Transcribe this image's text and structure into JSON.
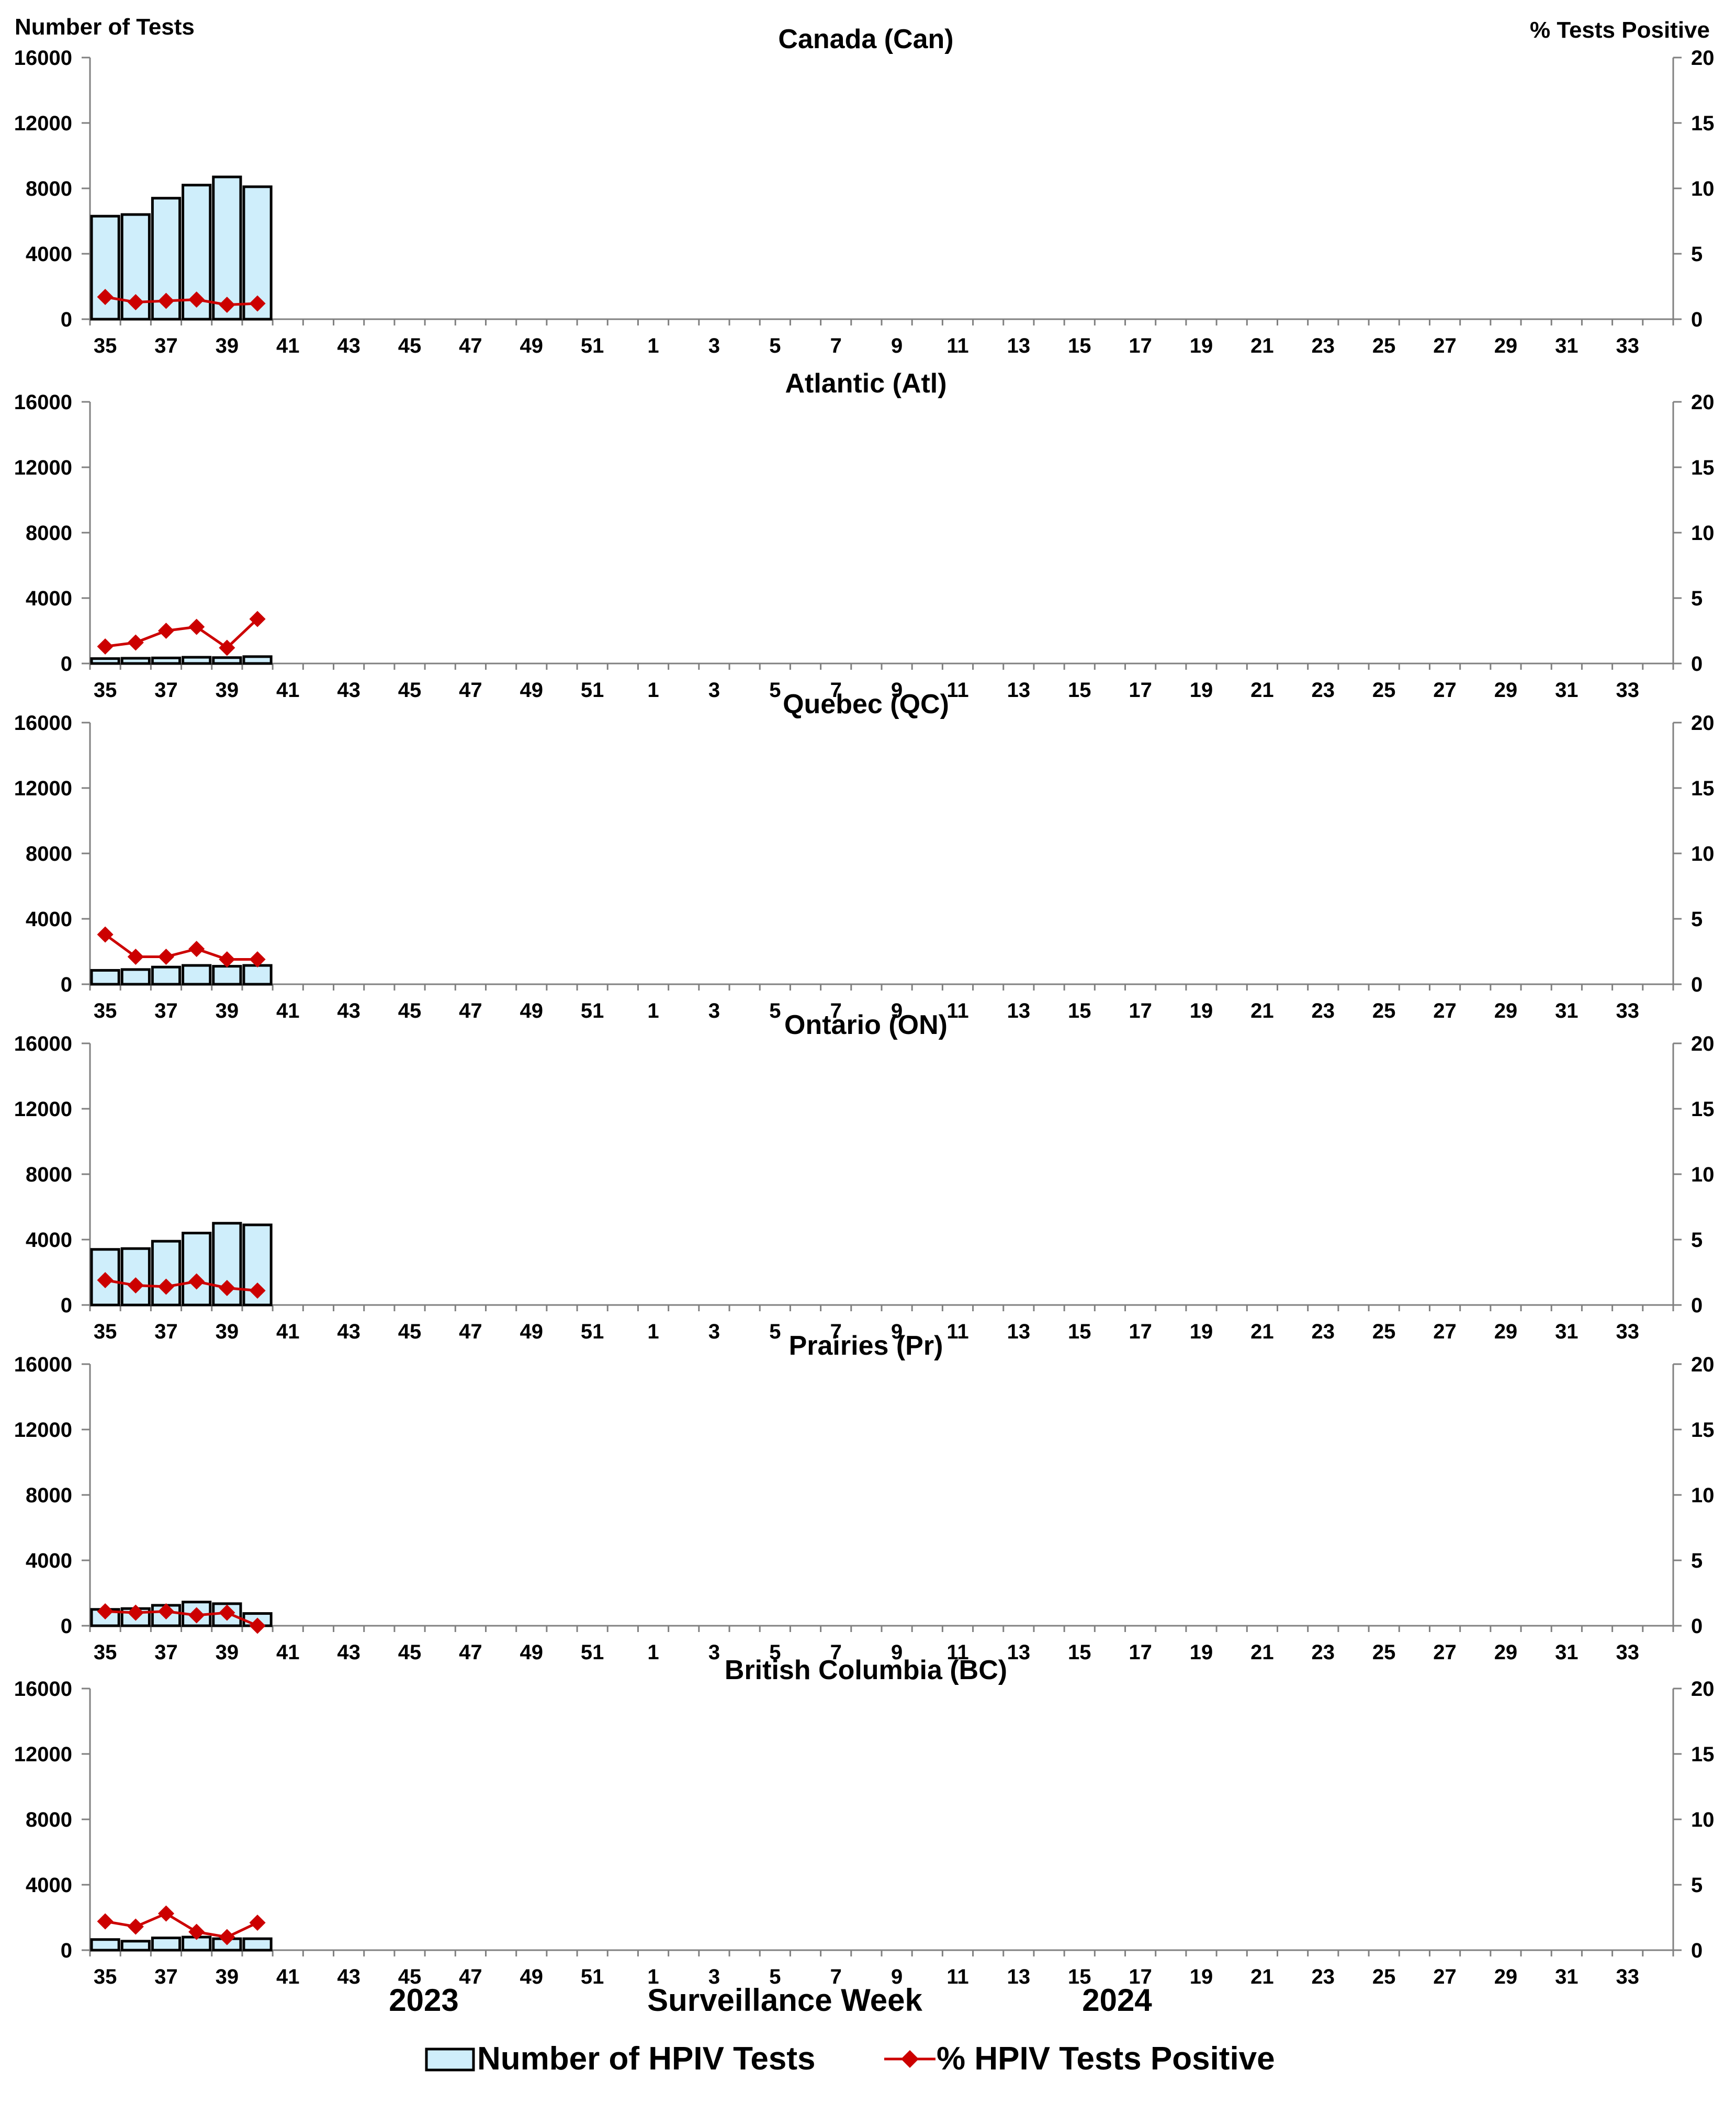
{
  "axes": {
    "left_title": "Number of Tests",
    "right_title": "% Tests Positive",
    "x_title": "Surveillance Week",
    "year_labels": [
      "2023",
      "2024"
    ]
  },
  "legend": {
    "bars_label": "Number of HPIV Tests",
    "line_label": "% HPIV Tests Positive"
  },
  "colors": {
    "bar_fill": "#cfeefb",
    "bar_stroke": "#000000",
    "line": "#cc0000",
    "axis": "#808080"
  },
  "chart_data": [
    {
      "type": "bar",
      "title": "Canada (Can)",
      "x_ticks": [
        "35",
        "37",
        "39",
        "41",
        "43",
        "45",
        "47",
        "49",
        "51",
        "1",
        "3",
        "5",
        "7",
        "9",
        "11",
        "13",
        "15",
        "17",
        "19",
        "21",
        "23",
        "25",
        "27",
        "29",
        "31",
        "33"
      ],
      "y_ticks_left": [
        "0",
        "4000",
        "8000",
        "12000",
        "16000"
      ],
      "y_ticks_right": [
        "0",
        "5",
        "10",
        "15",
        "20"
      ],
      "ylim_left": [
        0,
        16000
      ],
      "ylim_right": [
        0,
        20
      ],
      "weeks": [
        "35",
        "36",
        "37",
        "38",
        "39",
        "40"
      ],
      "series": [
        {
          "name": "Number of HPIV Tests",
          "axis": "left",
          "values": [
            6300,
            6400,
            7400,
            8200,
            8700,
            8100
          ]
        },
        {
          "name": "% HPIV Tests Positive",
          "axis": "right",
          "values": [
            1.7,
            1.3,
            1.4,
            1.5,
            1.1,
            1.2
          ]
        }
      ]
    },
    {
      "type": "bar",
      "title": "Atlantic (Atl)",
      "x_ticks": [
        "35",
        "37",
        "39",
        "41",
        "43",
        "45",
        "47",
        "49",
        "51",
        "1",
        "3",
        "5",
        "7",
        "9",
        "11",
        "13",
        "15",
        "17",
        "19",
        "21",
        "23",
        "25",
        "27",
        "29",
        "31",
        "33"
      ],
      "y_ticks_left": [
        "0",
        "4000",
        "8000",
        "12000",
        "16000"
      ],
      "y_ticks_right": [
        "0",
        "5",
        "10",
        "15",
        "20"
      ],
      "ylim_left": [
        0,
        16000
      ],
      "ylim_right": [
        0,
        20
      ],
      "weeks": [
        "35",
        "36",
        "37",
        "38",
        "39",
        "40"
      ],
      "series": [
        {
          "name": "Number of HPIV Tests",
          "axis": "left",
          "values": [
            300,
            320,
            340,
            380,
            360,
            420
          ]
        },
        {
          "name": "% HPIV Tests Positive",
          "axis": "right",
          "values": [
            1.3,
            1.6,
            2.5,
            2.8,
            1.2,
            3.4
          ]
        }
      ]
    },
    {
      "type": "bar",
      "title": "Quebec (QC)",
      "x_ticks": [
        "35",
        "37",
        "39",
        "41",
        "43",
        "45",
        "47",
        "49",
        "51",
        "1",
        "3",
        "5",
        "7",
        "9",
        "11",
        "13",
        "15",
        "17",
        "19",
        "21",
        "23",
        "25",
        "27",
        "29",
        "31",
        "33"
      ],
      "y_ticks_left": [
        "0",
        "4000",
        "8000",
        "12000",
        "16000"
      ],
      "y_ticks_right": [
        "0",
        "5",
        "10",
        "15",
        "20"
      ],
      "ylim_left": [
        0,
        16000
      ],
      "ylim_right": [
        0,
        20
      ],
      "weeks": [
        "35",
        "36",
        "37",
        "38",
        "39",
        "40"
      ],
      "series": [
        {
          "name": "Number of HPIV Tests",
          "axis": "left",
          "values": [
            850,
            900,
            1050,
            1150,
            1100,
            1150
          ]
        },
        {
          "name": "% HPIV Tests Positive",
          "axis": "right",
          "values": [
            3.8,
            2.1,
            2.1,
            2.7,
            1.9,
            1.9
          ]
        }
      ]
    },
    {
      "type": "bar",
      "title": "Ontario (ON)",
      "x_ticks": [
        "35",
        "37",
        "39",
        "41",
        "43",
        "45",
        "47",
        "49",
        "51",
        "1",
        "3",
        "5",
        "7",
        "9",
        "11",
        "13",
        "15",
        "17",
        "19",
        "21",
        "23",
        "25",
        "27",
        "29",
        "31",
        "33"
      ],
      "y_ticks_left": [
        "0",
        "4000",
        "8000",
        "12000",
        "16000"
      ],
      "y_ticks_right": [
        "0",
        "5",
        "10",
        "15",
        "20"
      ],
      "ylim_left": [
        0,
        16000
      ],
      "ylim_right": [
        0,
        20
      ],
      "weeks": [
        "35",
        "36",
        "37",
        "38",
        "39",
        "40"
      ],
      "series": [
        {
          "name": "Number of HPIV Tests",
          "axis": "left",
          "values": [
            3400,
            3450,
            3900,
            4400,
            5000,
            4900
          ]
        },
        {
          "name": "% HPIV Tests Positive",
          "axis": "right",
          "values": [
            1.9,
            1.5,
            1.4,
            1.8,
            1.3,
            1.1
          ]
        }
      ]
    },
    {
      "type": "bar",
      "title": "Prairies (Pr)",
      "x_ticks": [
        "35",
        "37",
        "39",
        "41",
        "43",
        "45",
        "47",
        "49",
        "51",
        "1",
        "3",
        "5",
        "7",
        "9",
        "11",
        "13",
        "15",
        "17",
        "19",
        "21",
        "23",
        "25",
        "27",
        "29",
        "31",
        "33"
      ],
      "y_ticks_left": [
        "0",
        "4000",
        "8000",
        "12000",
        "16000"
      ],
      "y_ticks_right": [
        "0",
        "5",
        "10",
        "15",
        "20"
      ],
      "ylim_left": [
        0,
        16000
      ],
      "ylim_right": [
        0,
        20
      ],
      "weeks": [
        "35",
        "36",
        "37",
        "38",
        "39",
        "40"
      ],
      "series": [
        {
          "name": "Number of HPIV Tests",
          "axis": "left",
          "values": [
            1000,
            1050,
            1250,
            1450,
            1350,
            750
          ]
        },
        {
          "name": "% HPIV Tests Positive",
          "axis": "right",
          "values": [
            1.1,
            1.0,
            1.1,
            0.8,
            1.0,
            0.0
          ]
        }
      ]
    },
    {
      "type": "bar",
      "title": "British Columbia (BC)",
      "x_ticks": [
        "35",
        "37",
        "39",
        "41",
        "43",
        "45",
        "47",
        "49",
        "51",
        "1",
        "3",
        "5",
        "7",
        "9",
        "11",
        "13",
        "15",
        "17",
        "19",
        "21",
        "23",
        "25",
        "27",
        "29",
        "31",
        "33"
      ],
      "y_ticks_left": [
        "0",
        "4000",
        "8000",
        "12000",
        "16000"
      ],
      "y_ticks_right": [
        "0",
        "5",
        "10",
        "15",
        "20"
      ],
      "ylim_left": [
        0,
        16000
      ],
      "ylim_right": [
        0,
        20
      ],
      "weeks": [
        "35",
        "36",
        "37",
        "38",
        "39",
        "40"
      ],
      "series": [
        {
          "name": "Number of HPIV Tests",
          "axis": "left",
          "values": [
            650,
            550,
            750,
            800,
            700,
            700
          ]
        },
        {
          "name": "% HPIV Tests Positive",
          "axis": "right",
          "values": [
            2.2,
            1.8,
            2.8,
            1.4,
            1.0,
            2.1
          ]
        }
      ]
    }
  ]
}
